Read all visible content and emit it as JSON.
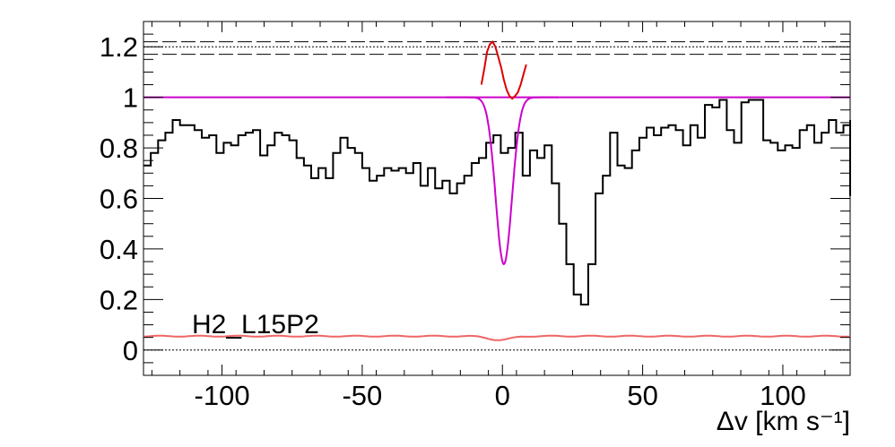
{
  "chart_data": {
    "type": "line",
    "xlabel": "Δv [km s⁻¹]",
    "line_label": "H2_L15P2",
    "xlim": [
      -128,
      124
    ],
    "ylim": [
      -0.1,
      1.3
    ],
    "x_ticks": [
      -100,
      -50,
      0,
      50,
      100
    ],
    "y_ticks": [
      0,
      0.2,
      0.4,
      0.6,
      0.8,
      1,
      1.2
    ],
    "y_tick_labels": [
      "0",
      "0.2",
      "0.4",
      "0.6",
      "0.8",
      "1",
      "1.2"
    ],
    "bin_width": 2.6,
    "bin_start": -128,
    "grid": false,
    "flux_values": [
      0.73,
      0.78,
      0.83,
      0.86,
      0.91,
      0.89,
      0.89,
      0.87,
      0.84,
      0.85,
      0.78,
      0.82,
      0.81,
      0.85,
      0.86,
      0.87,
      0.77,
      0.81,
      0.86,
      0.85,
      0.83,
      0.76,
      0.73,
      0.68,
      0.72,
      0.68,
      0.78,
      0.84,
      0.8,
      0.78,
      0.72,
      0.67,
      0.69,
      0.72,
      0.71,
      0.72,
      0.7,
      0.74,
      0.65,
      0.72,
      0.64,
      0.67,
      0.62,
      0.66,
      0.69,
      0.74,
      0.76,
      0.82,
      0.85,
      0.78,
      0.8,
      0.86,
      0.69,
      0.79,
      0.76,
      0.81,
      0.66,
      0.5,
      0.34,
      0.22,
      0.18,
      0.34,
      0.62,
      0.69,
      0.86,
      0.73,
      0.72,
      0.79,
      0.84,
      0.88,
      0.85,
      0.88,
      0.89,
      0.87,
      0.81,
      0.89,
      0.84,
      0.97,
      0.96,
      0.99,
      0.87,
      0.82,
      0.98,
      0.99,
      0.99,
      0.83,
      0.82,
      0.79,
      0.81,
      0.8,
      0.87,
      0.89,
      0.82,
      0.86,
      0.91,
      0.86,
      0.89,
      0.87,
      0.84,
      0.85,
      0.91,
      0.82,
      0.77,
      0.76,
      0.7,
      0.74,
      0.72,
      0.8,
      0.84,
      0.82,
      0.76,
      0.71,
      0.61,
      0.68,
      0.61,
      0.64,
      0.67
    ],
    "dashed_lines_y": [
      1.22,
      1.17
    ],
    "dotted_lines_y": [
      1.2,
      1.0,
      0.0
    ],
    "model": {
      "center": 0.5,
      "depth": 0.66,
      "sigma": 2.9,
      "range": [
        -20,
        20
      ],
      "continuum": 1.0
    },
    "error_series": {
      "level": 0.055,
      "dip_center": -1,
      "dip_depth": 0.015,
      "dip_sigma": 4
    },
    "residual_series": {
      "x": [
        -7.5,
        -6.5,
        -5.5,
        -4.5,
        -3.5,
        -2.5,
        -1.5,
        -0.5,
        0.5,
        1.5,
        2.5,
        3.5,
        4.5,
        5.5,
        6.5,
        7.5,
        8.5
      ],
      "y": [
        1.05,
        1.11,
        1.18,
        1.21,
        1.22,
        1.2,
        1.16,
        1.12,
        1.07,
        1.03,
        1.005,
        0.995,
        1.005,
        1.02,
        1.05,
        1.09,
        1.13
      ]
    },
    "colors": {
      "data": "#000000",
      "model": "#cc00cc",
      "residual": "#dd0000",
      "error": "#ee6666"
    }
  }
}
